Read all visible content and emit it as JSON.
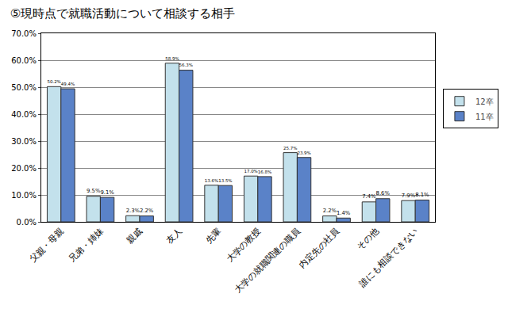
{
  "chart_data": {
    "type": "bar",
    "title": "⑤現時点で就職活動について相談する相手",
    "categories": [
      "父親・母親",
      "兄弟・姉妹",
      "親戚",
      "友人",
      "先輩",
      "大学の教授",
      "大学の就職関連の職員",
      "内定先の社員",
      "その他",
      "誰にも相談できない"
    ],
    "series": [
      {
        "name": "12卒",
        "color": "#c3e1ec",
        "values": [
          50.2,
          9.5,
          2.3,
          58.9,
          13.6,
          17.0,
          25.7,
          2.2,
          7.4,
          7.9
        ],
        "value_labels": [
          "50.2%",
          "9.5%",
          "2.3%",
          "58.9%",
          "13.6%",
          "17.0%",
          "25.7%",
          "2.2%",
          "7.4%",
          "7.9%"
        ]
      },
      {
        "name": "11卒",
        "color": "#5a82c8",
        "values": [
          49.4,
          9.1,
          2.2,
          56.3,
          13.5,
          16.8,
          23.9,
          1.4,
          8.6,
          8.1
        ],
        "value_labels": [
          "49.4%",
          "9.1%",
          "2.2%",
          "56.3%",
          "13.5%",
          "16.8%",
          "23.9%",
          "1.4%",
          "8.6%",
          "8.1%"
        ]
      }
    ],
    "ylim": [
      0,
      70
    ],
    "yticks": [
      {
        "value": 0,
        "label": "0.0%"
      },
      {
        "value": 10,
        "label": "10.0%"
      },
      {
        "value": 20,
        "label": "20.0%"
      },
      {
        "value": 30,
        "label": "30.0%"
      },
      {
        "value": 40,
        "label": "40.0%"
      },
      {
        "value": 50,
        "label": "50.0%"
      },
      {
        "value": 60,
        "label": "60.0%"
      },
      {
        "value": 70,
        "label": "70.0%"
      }
    ],
    "grid": true,
    "legend": "right",
    "data_labels": true
  }
}
